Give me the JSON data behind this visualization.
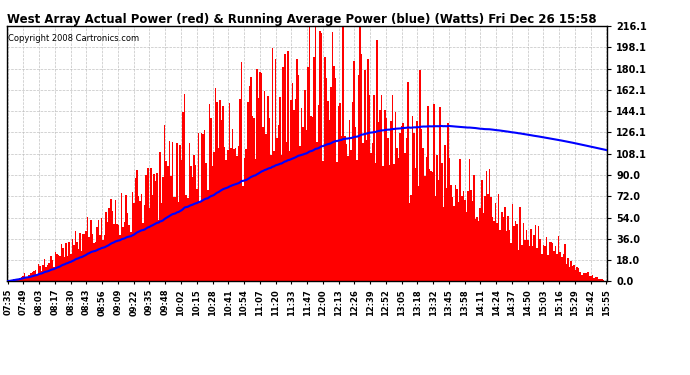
{
  "title": "West Array Actual Power (red) & Running Average Power (blue) (Watts) Fri Dec 26 15:58",
  "copyright": "Copyright 2008 Cartronics.com",
  "yticks": [
    0.0,
    18.0,
    36.0,
    54.0,
    72.0,
    90.0,
    108.1,
    126.1,
    144.1,
    162.1,
    180.1,
    198.1,
    216.1
  ],
  "ymax": 216.1,
  "ymin": 0.0,
  "bar_color": "#FF0000",
  "avg_color": "#0000FF",
  "bg_color": "#FFFFFF",
  "grid_color": "#AAAAAA",
  "title_color": "#000000",
  "xtick_labels": [
    "07:35",
    "07:49",
    "08:03",
    "08:17",
    "08:30",
    "08:43",
    "08:56",
    "09:09",
    "09:22",
    "09:35",
    "09:48",
    "10:02",
    "10:15",
    "10:28",
    "10:41",
    "10:54",
    "11:07",
    "11:20",
    "11:33",
    "11:47",
    "12:00",
    "12:13",
    "12:26",
    "12:39",
    "12:52",
    "13:05",
    "13:18",
    "13:32",
    "13:45",
    "13:58",
    "14:11",
    "14:24",
    "14:37",
    "14:50",
    "15:03",
    "15:16",
    "15:29",
    "15:42",
    "15:55"
  ],
  "num_points": 390
}
